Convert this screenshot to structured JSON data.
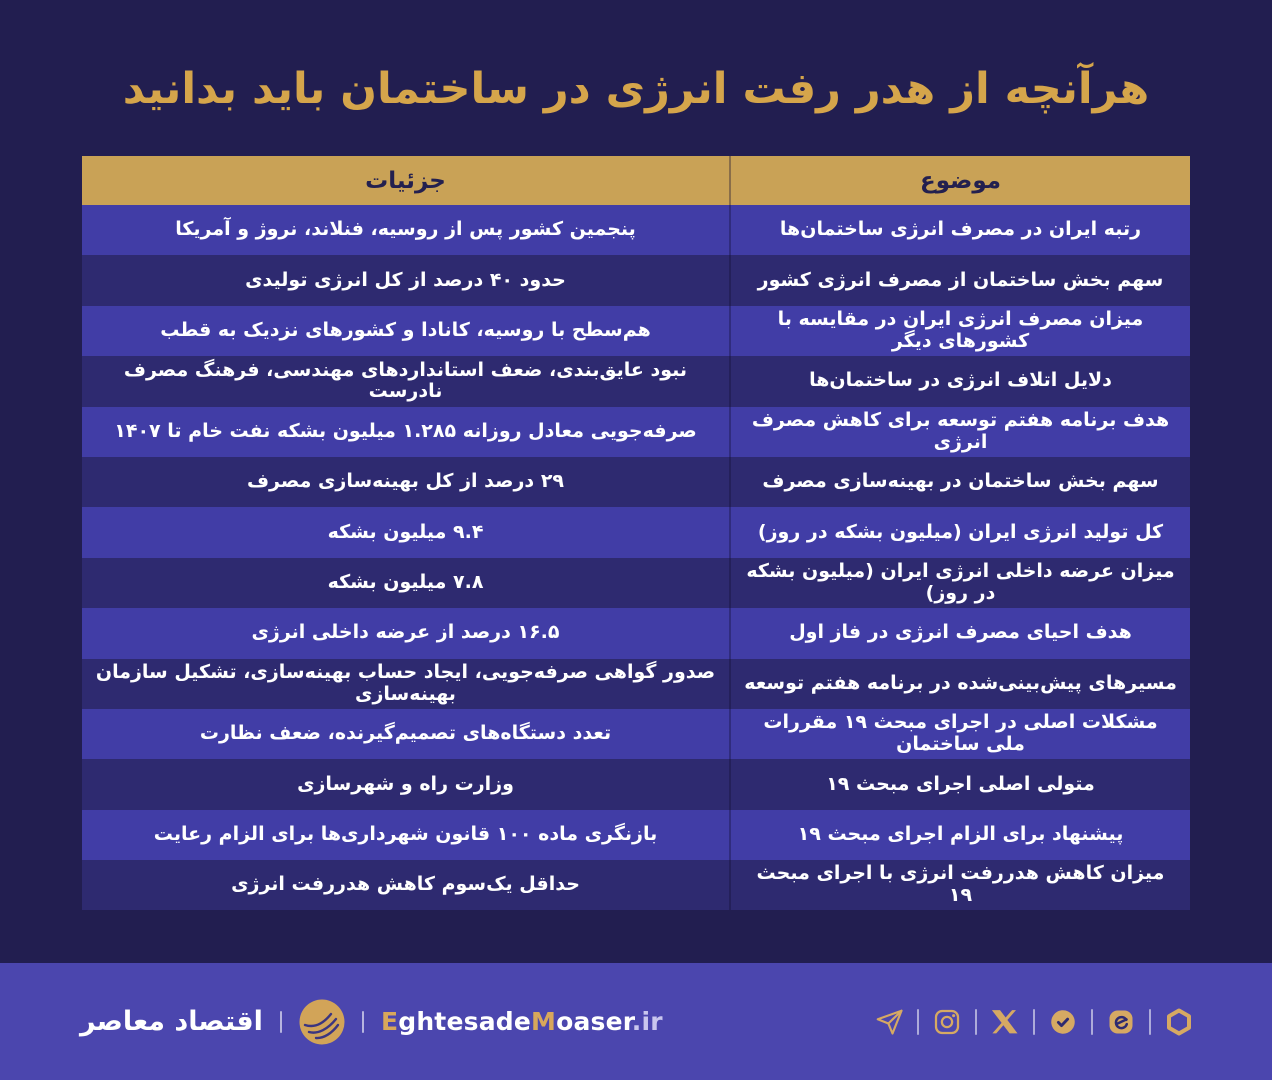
{
  "title": "هرآنچه از هدر رفت انرژی در ساختمان باید بدانید",
  "chart_data": {
    "type": "table",
    "title": "هرآنچه از هدر رفت انرژی در ساختمان باید بدانید",
    "columns": [
      "موضوع",
      "جزئیات"
    ],
    "rows": [
      [
        "رتبه ایران در مصرف انرژی ساختمان‌ها",
        "پنجمین کشور پس از روسیه، فنلاند، نروژ و آمریکا"
      ],
      [
        "سهم بخش ساختمان از مصرف انرژی کشور",
        "حدود ۴۰ درصد از کل انرژی تولیدی"
      ],
      [
        "میزان مصرف انرژی ایران در مقایسه با کشورهای دیگر",
        "هم‌سطح با روسیه، کانادا و کشورهای نزدیک به قطب"
      ],
      [
        "دلایل اتلاف انرژی در ساختمان‌ها",
        "نبود عایق‌بندی، ضعف استانداردهای مهندسی، فرهنگ مصرف نادرست"
      ],
      [
        "هدف برنامه هفتم توسعه برای کاهش مصرف انرژی",
        "صرفه‌جویی معادل روزانه ۱.۲۸۵ میلیون بشکه نفت خام تا ۱۴۰۷"
      ],
      [
        "سهم بخش ساختمان در بهینه‌سازی مصرف",
        "۲۹ درصد از کل بهینه‌سازی مصرف"
      ],
      [
        "کل تولید انرژی ایران (میلیون بشکه در روز)",
        "۹.۴ میلیون بشکه"
      ],
      [
        "میزان عرضه داخلی انرژی ایران (میلیون بشکه در روز)",
        "۷.۸ میلیون بشکه"
      ],
      [
        "هدف احیای مصرف انرژی در فاز اول",
        "۱۶.۵ درصد از عرضه داخلی انرژی"
      ],
      [
        "مسیرهای پیش‌بینی‌شده در برنامه هفتم توسعه",
        "صدور گواهی صرفه‌جویی، ایجاد حساب بهینه‌سازی، تشکیل سازمان بهینه‌سازی"
      ],
      [
        "مشکلات اصلی در اجرای مبحث ۱۹ مقررات ملی ساختمان",
        "تعدد دستگاه‌های تصمیم‌گیرنده، ضعف نظارت"
      ],
      [
        "متولی اصلی اجرای مبحث ۱۹",
        "وزارت راه و شهرسازی"
      ],
      [
        "پیشنهاد برای الزام اجرای مبحث ۱۹",
        "بازنگری ماده ۱۰۰ قانون شهرداری‌ها برای الزام رعایت"
      ],
      [
        "میزان کاهش هدررفت انرژی با اجرای مبحث ۱۹",
        "حداقل یک‌سوم کاهش هدررفت انرژی"
      ]
    ]
  },
  "footer": {
    "brand_fa": "اقتصاد معاصر",
    "brand_en": [
      {
        "text": "E",
        "style": "gold"
      },
      {
        "text": "ghtesade",
        "style": "white"
      },
      {
        "text": "M",
        "style": "gold"
      },
      {
        "text": "oaser",
        "style": "white"
      },
      {
        "text": ".ir",
        "style": "muted"
      }
    ],
    "social_icons": [
      "telegram",
      "instagram",
      "x-twitter",
      "bale",
      "eitaa",
      "rubika"
    ]
  },
  "colors": {
    "background": "#221e50",
    "header_gold": "#c9a256",
    "row_light": "#413da6",
    "row_dark": "#2e2a70",
    "footer_purple": "#4b46ae",
    "title_gold": "#d5a54b",
    "icon_gold": "#d6a963",
    "row_text": "#ffffff",
    "header_text": "#23204f"
  }
}
